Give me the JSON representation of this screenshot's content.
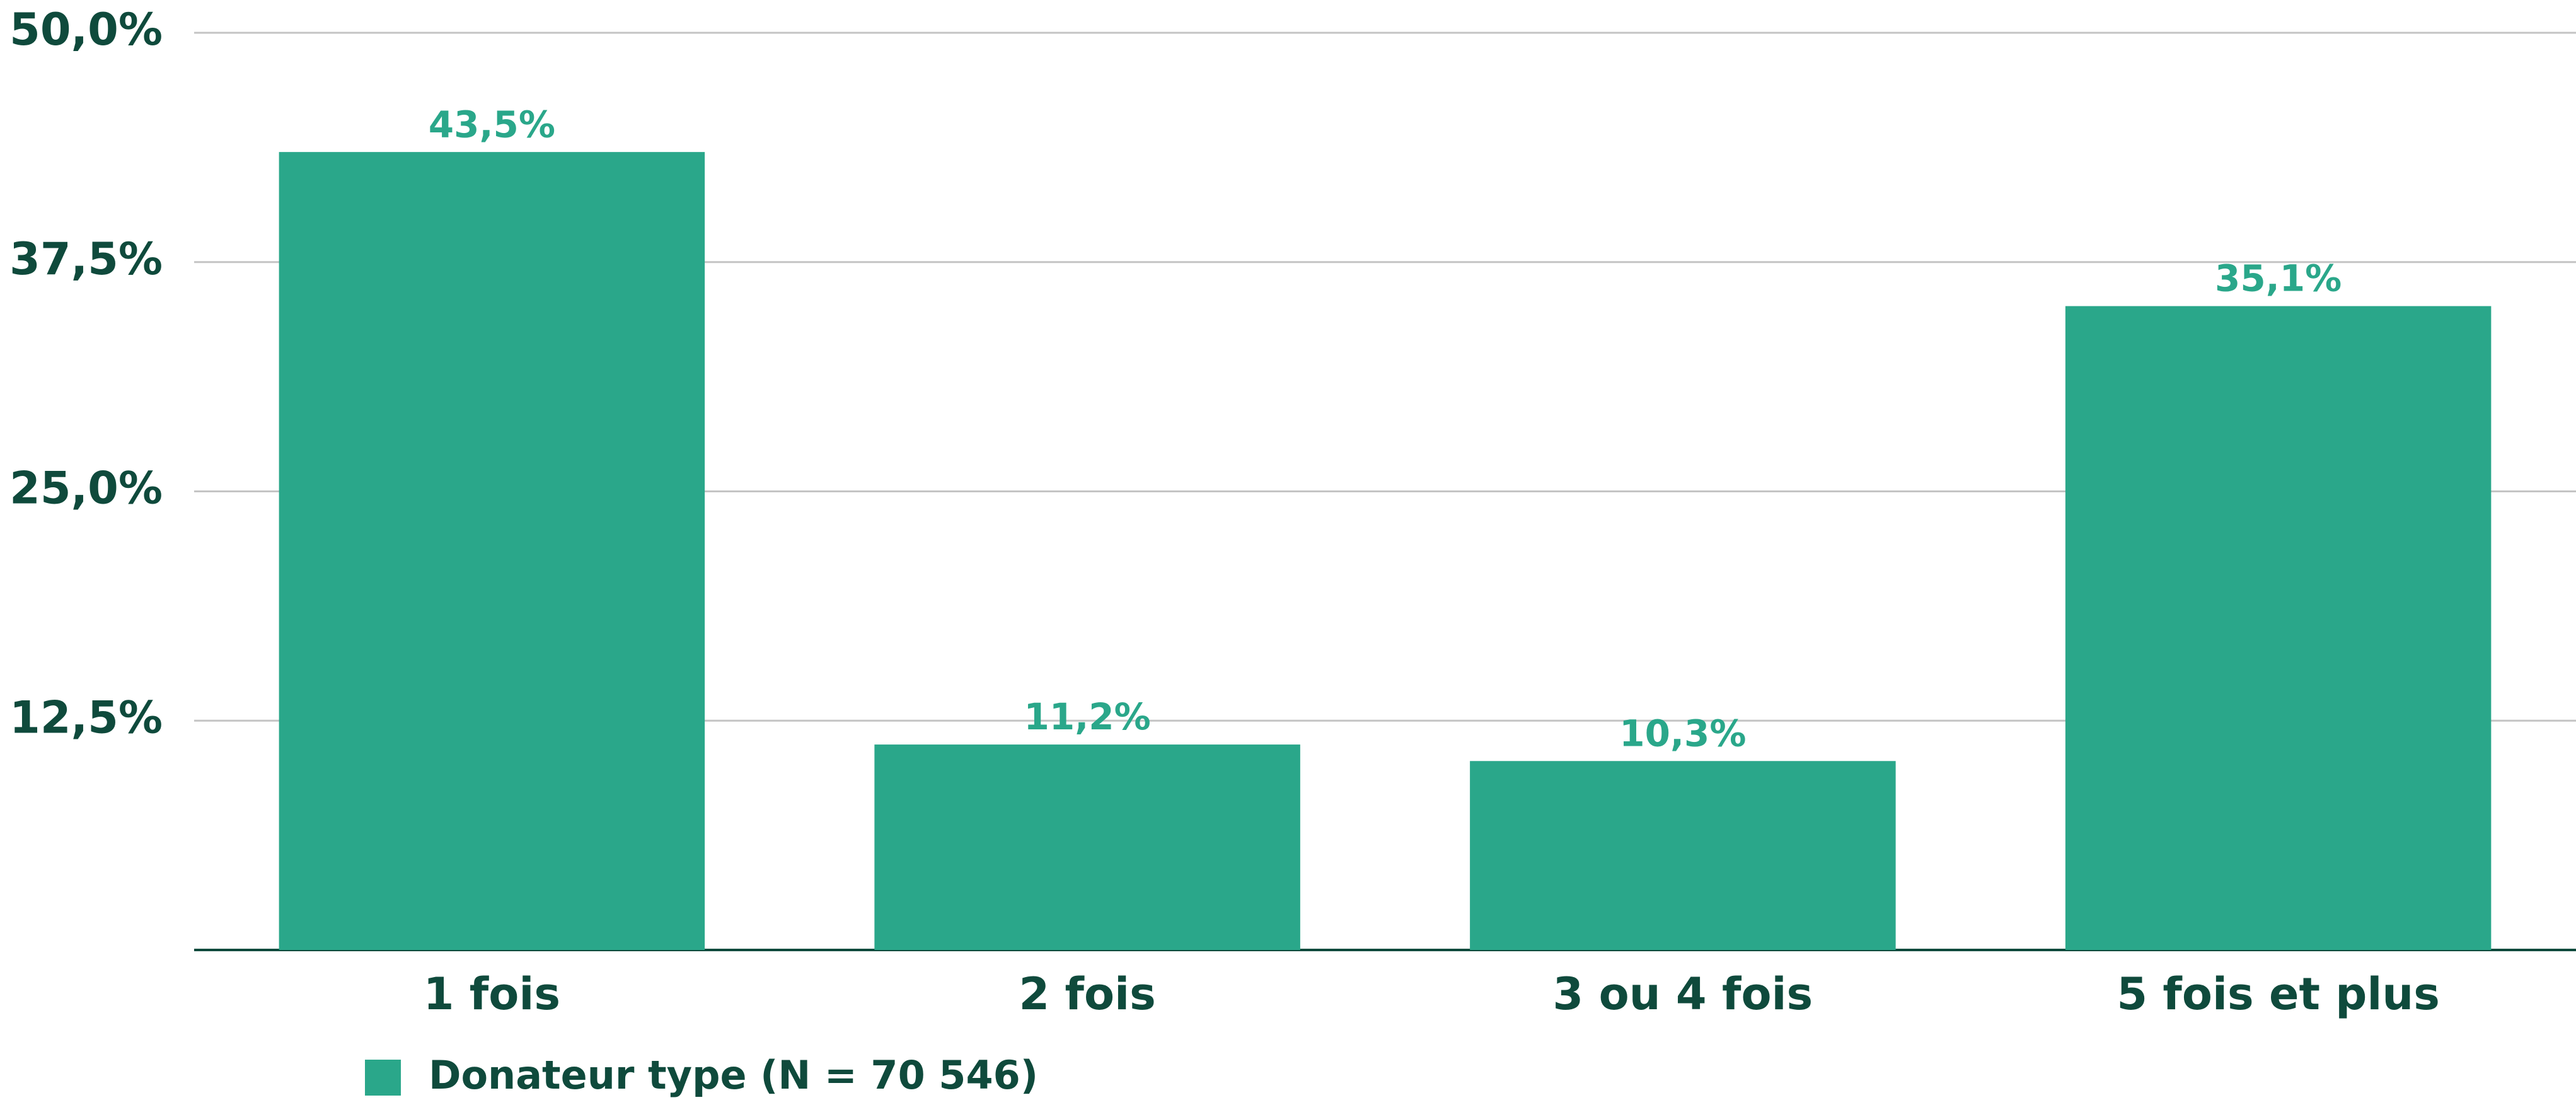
{
  "chart_data": {
    "type": "bar",
    "categories": [
      "1 fois",
      "2 fois",
      "3 ou 4 fois",
      "5 fois et plus"
    ],
    "series": [
      {
        "name": "Donateur type (N = 70 546)",
        "color": "#2aa78a",
        "values": [
          43.5,
          11.2,
          10.3,
          35.1
        ],
        "value_labels": [
          "43,5%",
          "11,2%",
          "10,3%",
          "35,1%"
        ]
      }
    ],
    "ylim": [
      0,
      50
    ],
    "yticks": [
      {
        "value": 12.5,
        "label": "12,5%"
      },
      {
        "value": 25,
        "label": "25,0%"
      },
      {
        "value": 37.5,
        "label": "37,5%"
      },
      {
        "value": 50,
        "label": "50,0%"
      }
    ],
    "grid": true
  }
}
